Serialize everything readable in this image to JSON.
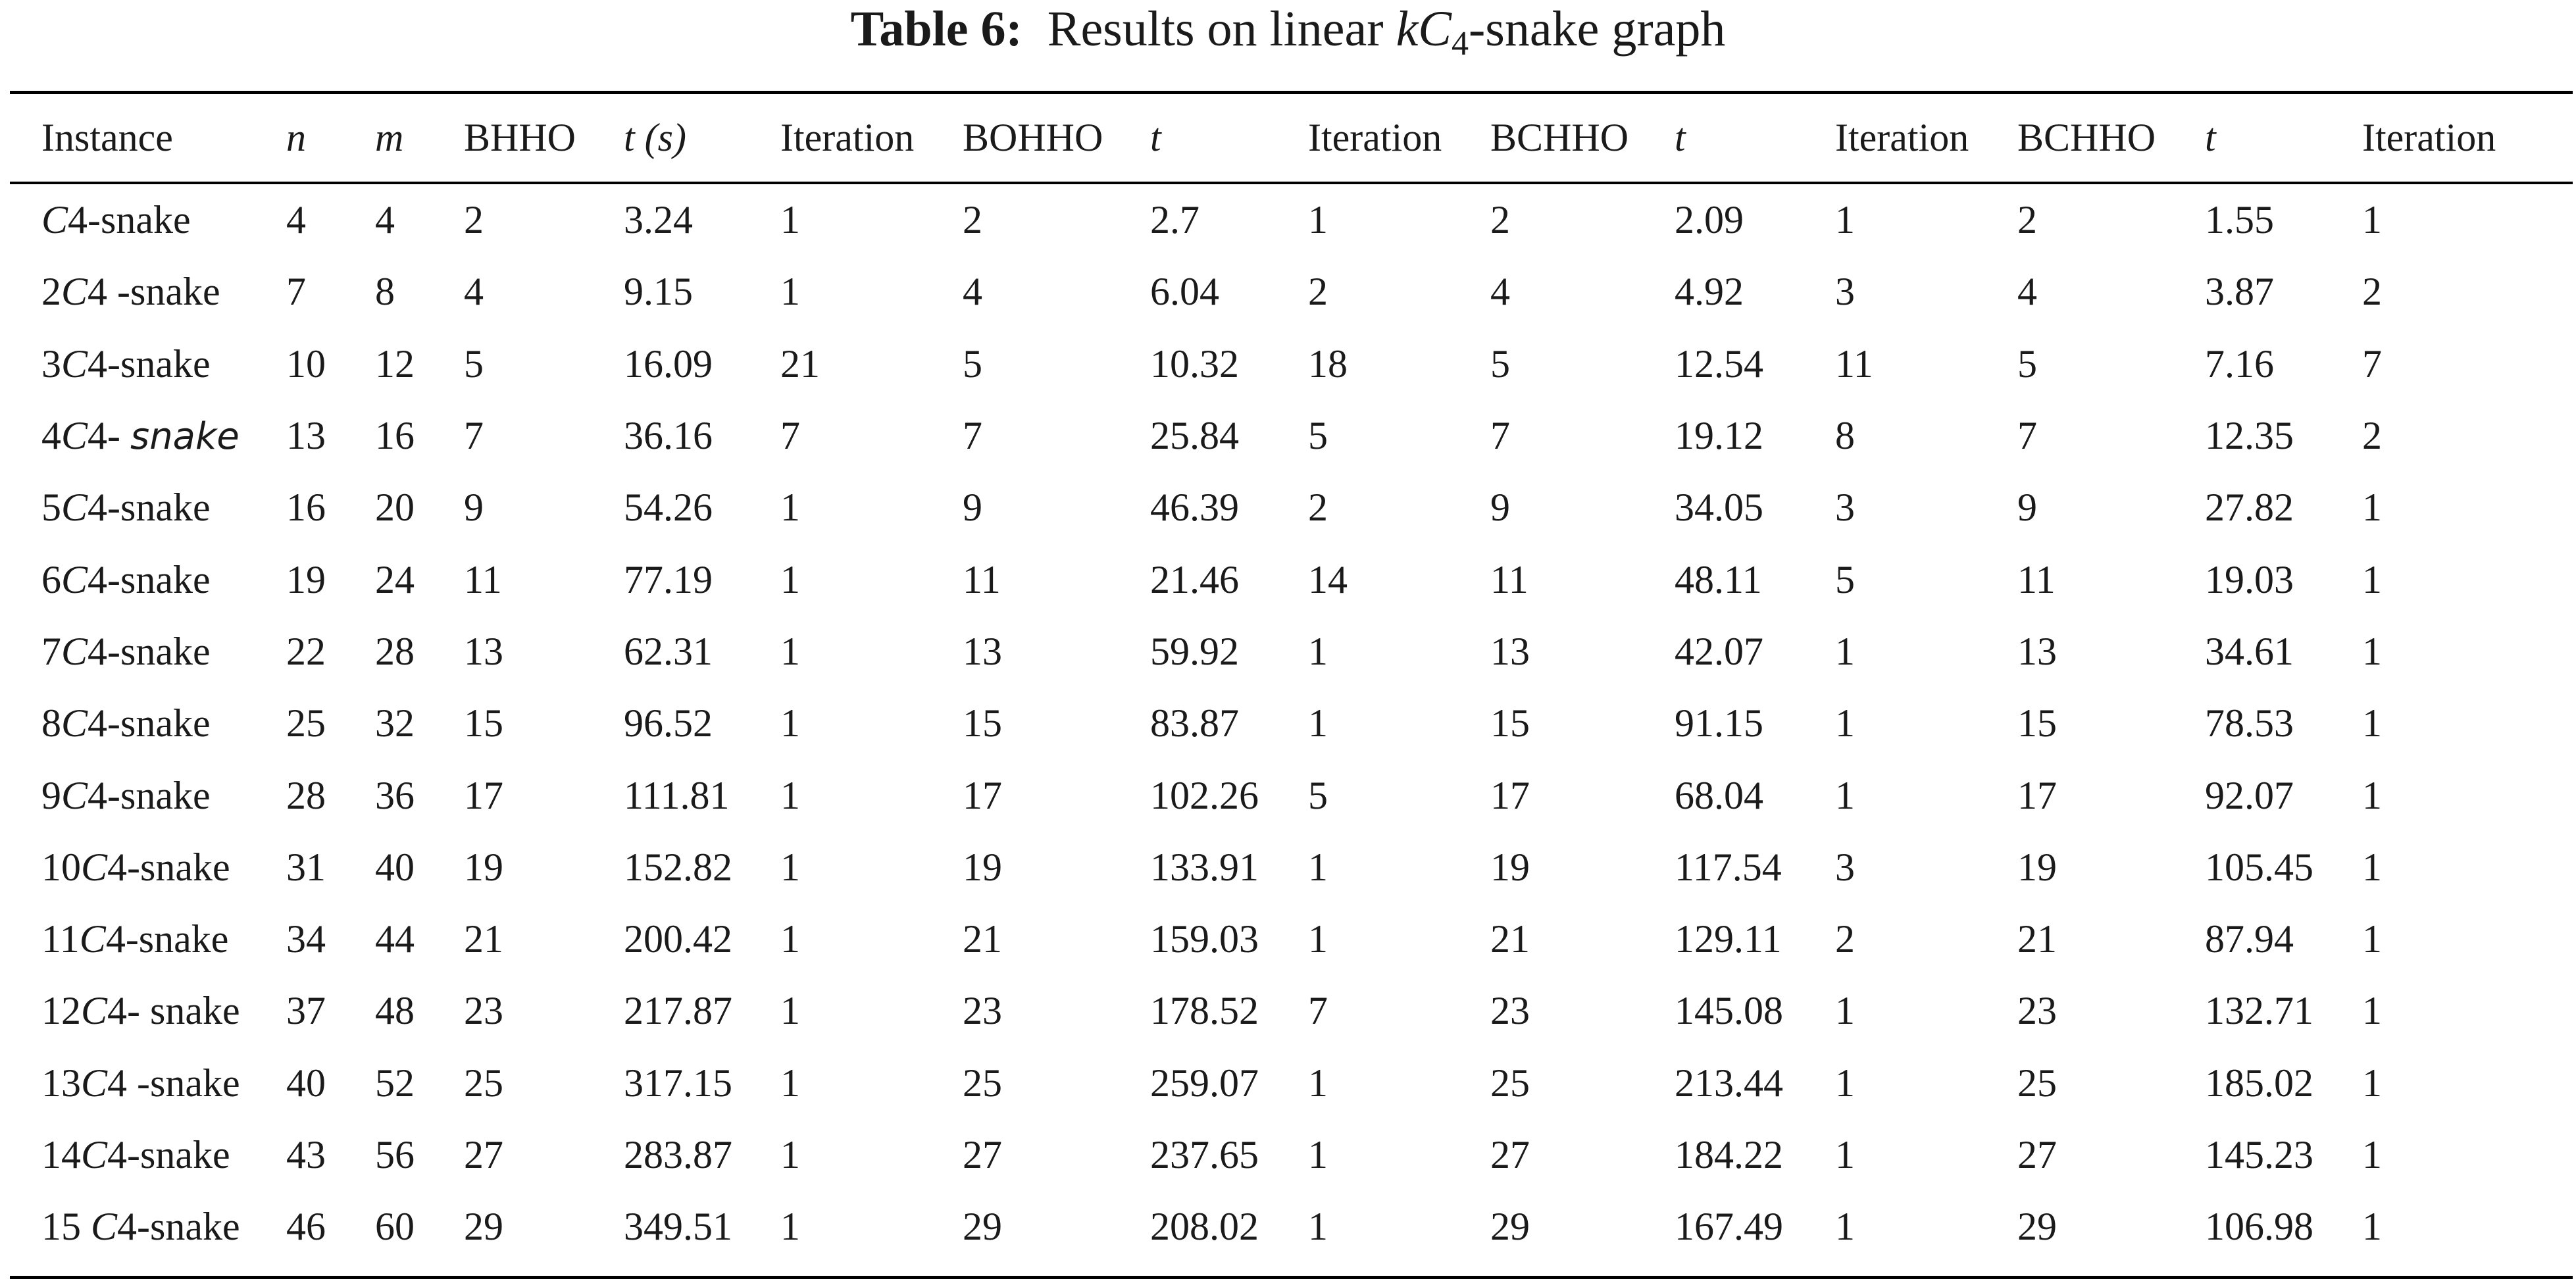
{
  "caption": {
    "label": "Table 6:",
    "text_before": "Results on linear ",
    "math_k": "k",
    "math_C": "C",
    "math_sub": "4",
    "text_after": "-snake graph"
  },
  "headers": [
    "Instance",
    "n",
    "m",
    "BHHO",
    "t (s)",
    "Iteration",
    "BOHHO",
    "t",
    "Iteration",
    "BCHHO",
    "t",
    "Iteration",
    "BCHHO",
    "t",
    "Iteration"
  ],
  "rows": [
    {
      "pre": "",
      "mid": "C",
      "post": "4-snake",
      "vals": [
        "4",
        "4",
        "2",
        "3.24",
        "1",
        "2",
        "2.7",
        "1",
        "2",
        "2.09",
        "1",
        "2",
        "1.55",
        "1"
      ]
    },
    {
      "pre": "2",
      "mid": "C",
      "post": "4 -snake",
      "vals": [
        "7",
        "8",
        "4",
        "9.15",
        "1",
        "4",
        "6.04",
        "2",
        "4",
        "4.92",
        "3",
        "4",
        "3.87",
        "2"
      ]
    },
    {
      "pre": "3",
      "mid": "C",
      "post": "4-snake",
      "vals": [
        "10",
        "12",
        "5",
        "16.09",
        "21",
        "5",
        "10.32",
        "18",
        "5",
        "12.54",
        "11",
        "5",
        "7.16",
        "7"
      ]
    },
    {
      "pre": "4",
      "mid": "C",
      "post": "4- ",
      "post_it": "snake",
      "vals": [
        "13",
        "16",
        "7",
        "36.16",
        "7",
        "7",
        "25.84",
        "5",
        "7",
        "19.12",
        "8",
        "7",
        "12.35",
        "2"
      ]
    },
    {
      "pre": "5",
      "mid": "C",
      "post": "4-snake",
      "vals": [
        "16",
        "20",
        "9",
        "54.26",
        "1",
        "9",
        "46.39",
        "2",
        "9",
        "34.05",
        "3",
        "9",
        "27.82",
        "1"
      ]
    },
    {
      "pre": "6",
      "mid": "C",
      "post": "4-snake",
      "vals": [
        "19",
        "24",
        "11",
        "77.19",
        "1",
        "11",
        "21.46",
        "14",
        "11",
        "48.11",
        "5",
        "11",
        "19.03",
        "1"
      ]
    },
    {
      "pre": "7",
      "mid": "C",
      "post": "4-snake",
      "vals": [
        "22",
        "28",
        "13",
        "62.31",
        "1",
        "13",
        "59.92",
        "1",
        "13",
        "42.07",
        "1",
        "13",
        "34.61",
        "1"
      ]
    },
    {
      "pre": "8",
      "mid": "C",
      "post": "4-snake",
      "vals": [
        "25",
        "32",
        "15",
        "96.52",
        "1",
        "15",
        "83.87",
        "1",
        "15",
        "91.15",
        "1",
        "15",
        "78.53",
        "1"
      ]
    },
    {
      "pre": "9",
      "mid": "C",
      "post": "4-snake",
      "vals": [
        "28",
        "36",
        "17",
        "111.81",
        "1",
        "17",
        "102.26",
        "5",
        "17",
        "68.04",
        "1",
        "17",
        "92.07",
        "1"
      ],
      "bold_cols": [
        9
      ]
    },
    {
      "pre": "10",
      "mid": "C",
      "post": "4-snake",
      "vals": [
        "31",
        "40",
        "19",
        "152.82",
        "1",
        "19",
        "133.91",
        "1",
        "19",
        "117.54",
        "3",
        "19",
        "105.45",
        "1"
      ]
    },
    {
      "pre": "11",
      "mid": "C",
      "post": "4-snake",
      "vals": [
        "34",
        "44",
        "21",
        "200.42",
        "1",
        "21",
        "159.03",
        "1",
        "21",
        "129.11",
        "2",
        "21",
        "87.94",
        "1"
      ]
    },
    {
      "pre": "12",
      "mid": "C",
      "post": "4- snake",
      "vals": [
        "37",
        "48",
        "23",
        "217.87",
        "1",
        "23",
        "178.52",
        "7",
        "23",
        "145.08",
        "1",
        "23",
        "132.71",
        "1"
      ]
    },
    {
      "pre": "13",
      "mid": "C",
      "post": "4 -snake",
      "vals": [
        "40",
        "52",
        "25",
        "317.15",
        "1",
        "25",
        "259.07",
        "1",
        "25",
        "213.44",
        "1",
        "25",
        "185.02",
        "1"
      ]
    },
    {
      "pre": "14",
      "mid": "C",
      "post": "4-snake",
      "vals": [
        "43",
        "56",
        "27",
        "283.87",
        "1",
        "27",
        "237.65",
        "1",
        "27",
        "184.22",
        "1",
        "27",
        "145.23",
        "1"
      ]
    },
    {
      "pre": "15 ",
      "mid": "C",
      "post": "4-snake",
      "vals": [
        "46",
        "60",
        "29",
        "349.51",
        "1",
        "29",
        "208.02",
        "1",
        "29",
        "167.49",
        "1",
        "29",
        "106.98",
        "1"
      ]
    }
  ]
}
